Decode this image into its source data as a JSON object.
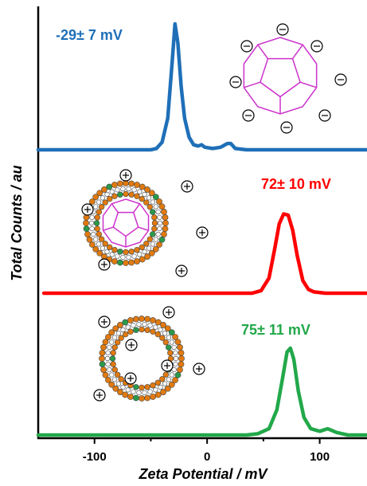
{
  "chart_data": {
    "type": "line",
    "xlabel": "Zeta Potential / mV",
    "ylabel": "Total Counts / au",
    "xlim": [
      -150,
      142
    ],
    "xticks": [
      -100,
      0,
      100
    ],
    "minor_xticks": [
      -50,
      50
    ],
    "series": [
      {
        "label": "-29± 7 mV",
        "color": "#1f6fb8",
        "x": [
          -150,
          -50,
          -45,
          -40,
          -35,
          -31,
          -28.5,
          -26,
          -23,
          -20,
          -16,
          -12,
          -8,
          -5,
          -2,
          5,
          12,
          18,
          21,
          25,
          35,
          142
        ],
        "values": [
          0,
          0,
          1,
          6,
          25,
          70,
          100,
          85,
          50,
          25,
          10,
          4,
          3,
          4,
          2,
          1,
          2,
          5,
          5,
          1,
          0,
          0
        ]
      },
      {
        "label": "72± 10 mV",
        "color": "#ff0000",
        "x": [
          -145,
          40,
          48,
          55,
          60,
          64,
          68,
          72,
          76,
          80,
          85,
          90,
          95,
          105,
          142
        ],
        "values": [
          0,
          0,
          2,
          12,
          35,
          55,
          63,
          62,
          50,
          30,
          10,
          3,
          1,
          0,
          0
        ]
      },
      {
        "label": "75± 11 mV",
        "color": "#22a84a",
        "x": [
          -150,
          35,
          45,
          55,
          62,
          67,
          71,
          74,
          77,
          81,
          86,
          92,
          100,
          107,
          115,
          125,
          142
        ],
        "values": [
          0,
          0,
          1,
          5,
          20,
          45,
          66,
          69,
          60,
          35,
          14,
          5,
          3,
          5,
          2,
          0,
          0
        ]
      }
    ]
  }
}
